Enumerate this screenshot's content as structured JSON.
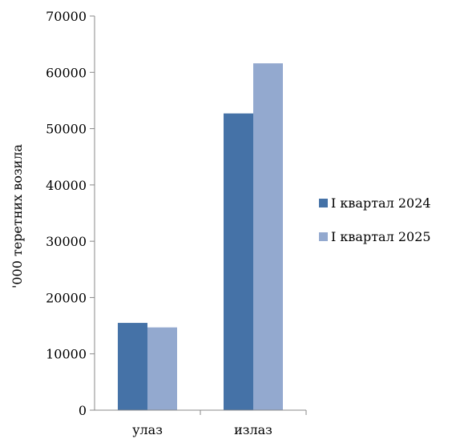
{
  "chart_data": {
    "type": "bar",
    "title": "",
    "xlabel": "",
    "ylabel": "'000 теретних возила",
    "ylim": [
      0,
      70000
    ],
    "yticks": [
      0,
      10000,
      20000,
      30000,
      40000,
      50000,
      60000,
      70000
    ],
    "categories": [
      "улаз",
      "излаз"
    ],
    "series": [
      {
        "name": "I квартал 2024",
        "values": [
          15500,
          52700
        ],
        "color": "#4572A7"
      },
      {
        "name": "I квартал 2025",
        "values": [
          14700,
          61600
        ],
        "color": "#93A9CF"
      }
    ],
    "legend_position": "right",
    "grid": false
  }
}
